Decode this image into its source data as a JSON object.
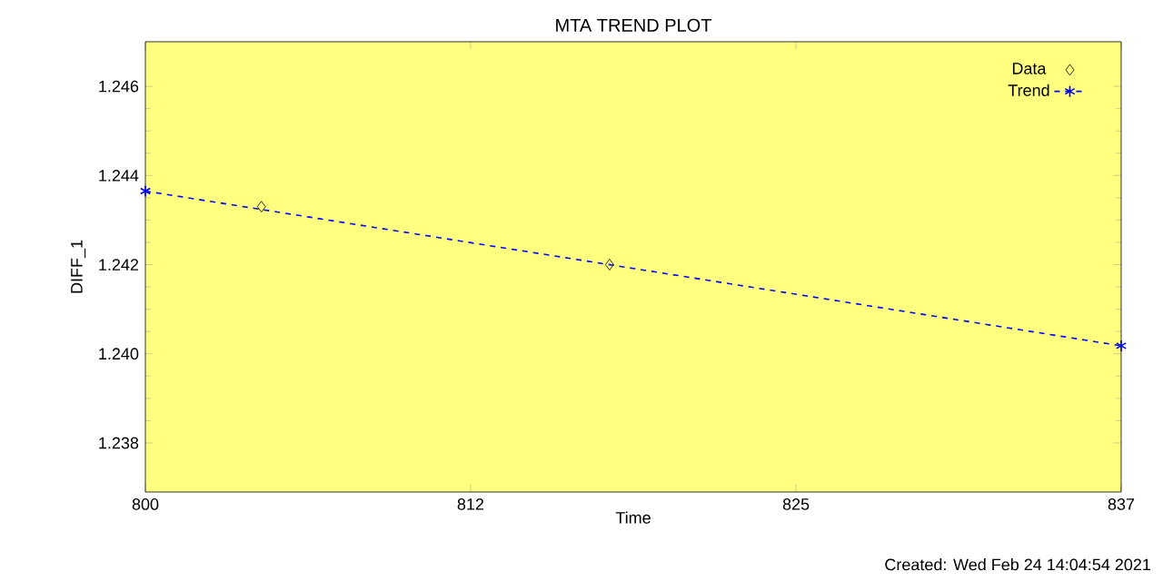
{
  "chart_data": {
    "type": "scatter",
    "title": "MTA TREND PLOT",
    "xlabel": "Time",
    "ylabel": "DIFF_1",
    "annotations": [
      "Created: Wed Feb 24 14:04:54 2021"
    ],
    "xlim": [
      800,
      837
    ],
    "xticks": [
      800,
      {
        "value": 812.33,
        "label": "812"
      },
      {
        "value": 824.67,
        "label": "825"
      },
      837
    ],
    "ylim": [
      1.2369,
      1.247
    ],
    "yticks": [
      {
        "value": 1.238,
        "label": "1.238"
      },
      {
        "value": 1.24,
        "label": "1.240"
      },
      {
        "value": 1.242,
        "label": "1.242"
      },
      {
        "value": 1.244,
        "label": "1.244"
      },
      {
        "value": 1.246,
        "label": "1.246"
      }
    ],
    "legend": "top right",
    "series": [
      {
        "name": "Data",
        "color": "#000000",
        "marker": "diamond",
        "x": [
          804.4,
          817.6
        ],
        "values": [
          1.2433,
          1.242
        ]
      },
      {
        "name": "Trend",
        "type": "line",
        "color": "#0000ff",
        "marker": "cross",
        "line_style": "dashed",
        "x": [
          800,
          837
        ],
        "values": [
          1.24365,
          1.24018
        ]
      }
    ]
  }
}
